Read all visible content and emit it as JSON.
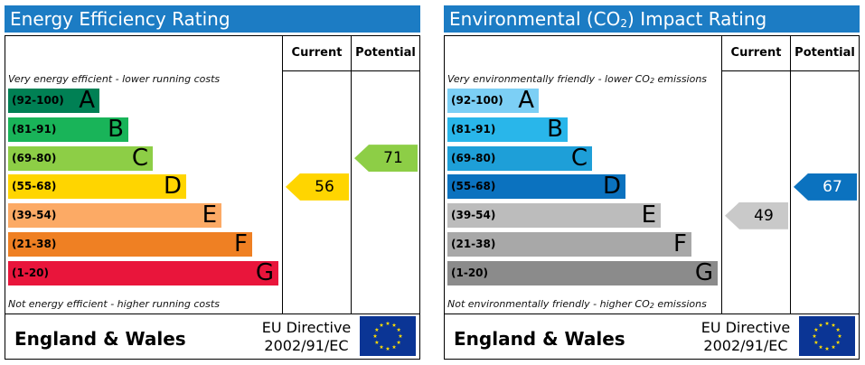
{
  "chart_data": [
    {
      "type": "bar",
      "title": "Energy Efficiency Rating",
      "column_headers": [
        "Current",
        "Potential"
      ],
      "top_caption": "Very energy efficient - lower running costs",
      "bottom_caption": "Not energy efficient - higher running costs",
      "bands": [
        {
          "range": "(92-100)",
          "letter": "A",
          "color": "#008054"
        },
        {
          "range": "(81-91)",
          "letter": "B",
          "color": "#19b459"
        },
        {
          "range": "(69-80)",
          "letter": "C",
          "color": "#8dce46"
        },
        {
          "range": "(55-68)",
          "letter": "D",
          "color": "#ffd500"
        },
        {
          "range": "(39-54)",
          "letter": "E",
          "color": "#fcaa65"
        },
        {
          "range": "(21-38)",
          "letter": "F",
          "color": "#ef8023"
        },
        {
          "range": "(1-20)",
          "letter": "G",
          "color": "#e9153b"
        }
      ],
      "current": {
        "value": "56",
        "band": "D",
        "color": "#ffd500"
      },
      "potential": {
        "value": "71",
        "band": "C",
        "color": "#8dce46"
      },
      "footer_region": "England & Wales",
      "directive_line1": "EU Directive",
      "directive_line2": "2002/91/EC"
    },
    {
      "type": "bar",
      "title_prefix": "Environmental (CO",
      "title_sub": "2",
      "title_suffix": ") Impact Rating",
      "column_headers": [
        "Current",
        "Potential"
      ],
      "top_caption_prefix": "Very environmentally friendly - lower CO",
      "top_caption_sub": "2",
      "top_caption_suffix": " emissions",
      "bottom_caption_prefix": "Not environmentally friendly - higher CO",
      "bottom_caption_sub": "2",
      "bottom_caption_suffix": " emissions",
      "bands": [
        {
          "range": "(92-100)",
          "letter": "A",
          "color": "#7ccff5"
        },
        {
          "range": "(81-91)",
          "letter": "B",
          "color": "#29b6ea"
        },
        {
          "range": "(69-80)",
          "letter": "C",
          "color": "#1e9fd8"
        },
        {
          "range": "(55-68)",
          "letter": "D",
          "color": "#0b72bf"
        },
        {
          "range": "(39-54)",
          "letter": "E",
          "color": "#bcbcbc"
        },
        {
          "range": "(21-38)",
          "letter": "F",
          "color": "#a8a8a8"
        },
        {
          "range": "(1-20)",
          "letter": "G",
          "color": "#8b8b8b"
        }
      ],
      "current": {
        "value": "49",
        "band": "E",
        "color": "#c9c9c9"
      },
      "potential": {
        "value": "67",
        "band": "D",
        "color": "#0b72bf"
      },
      "footer_region": "England & Wales",
      "directive_line1": "EU Directive",
      "directive_line2": "2002/91/EC"
    }
  ]
}
